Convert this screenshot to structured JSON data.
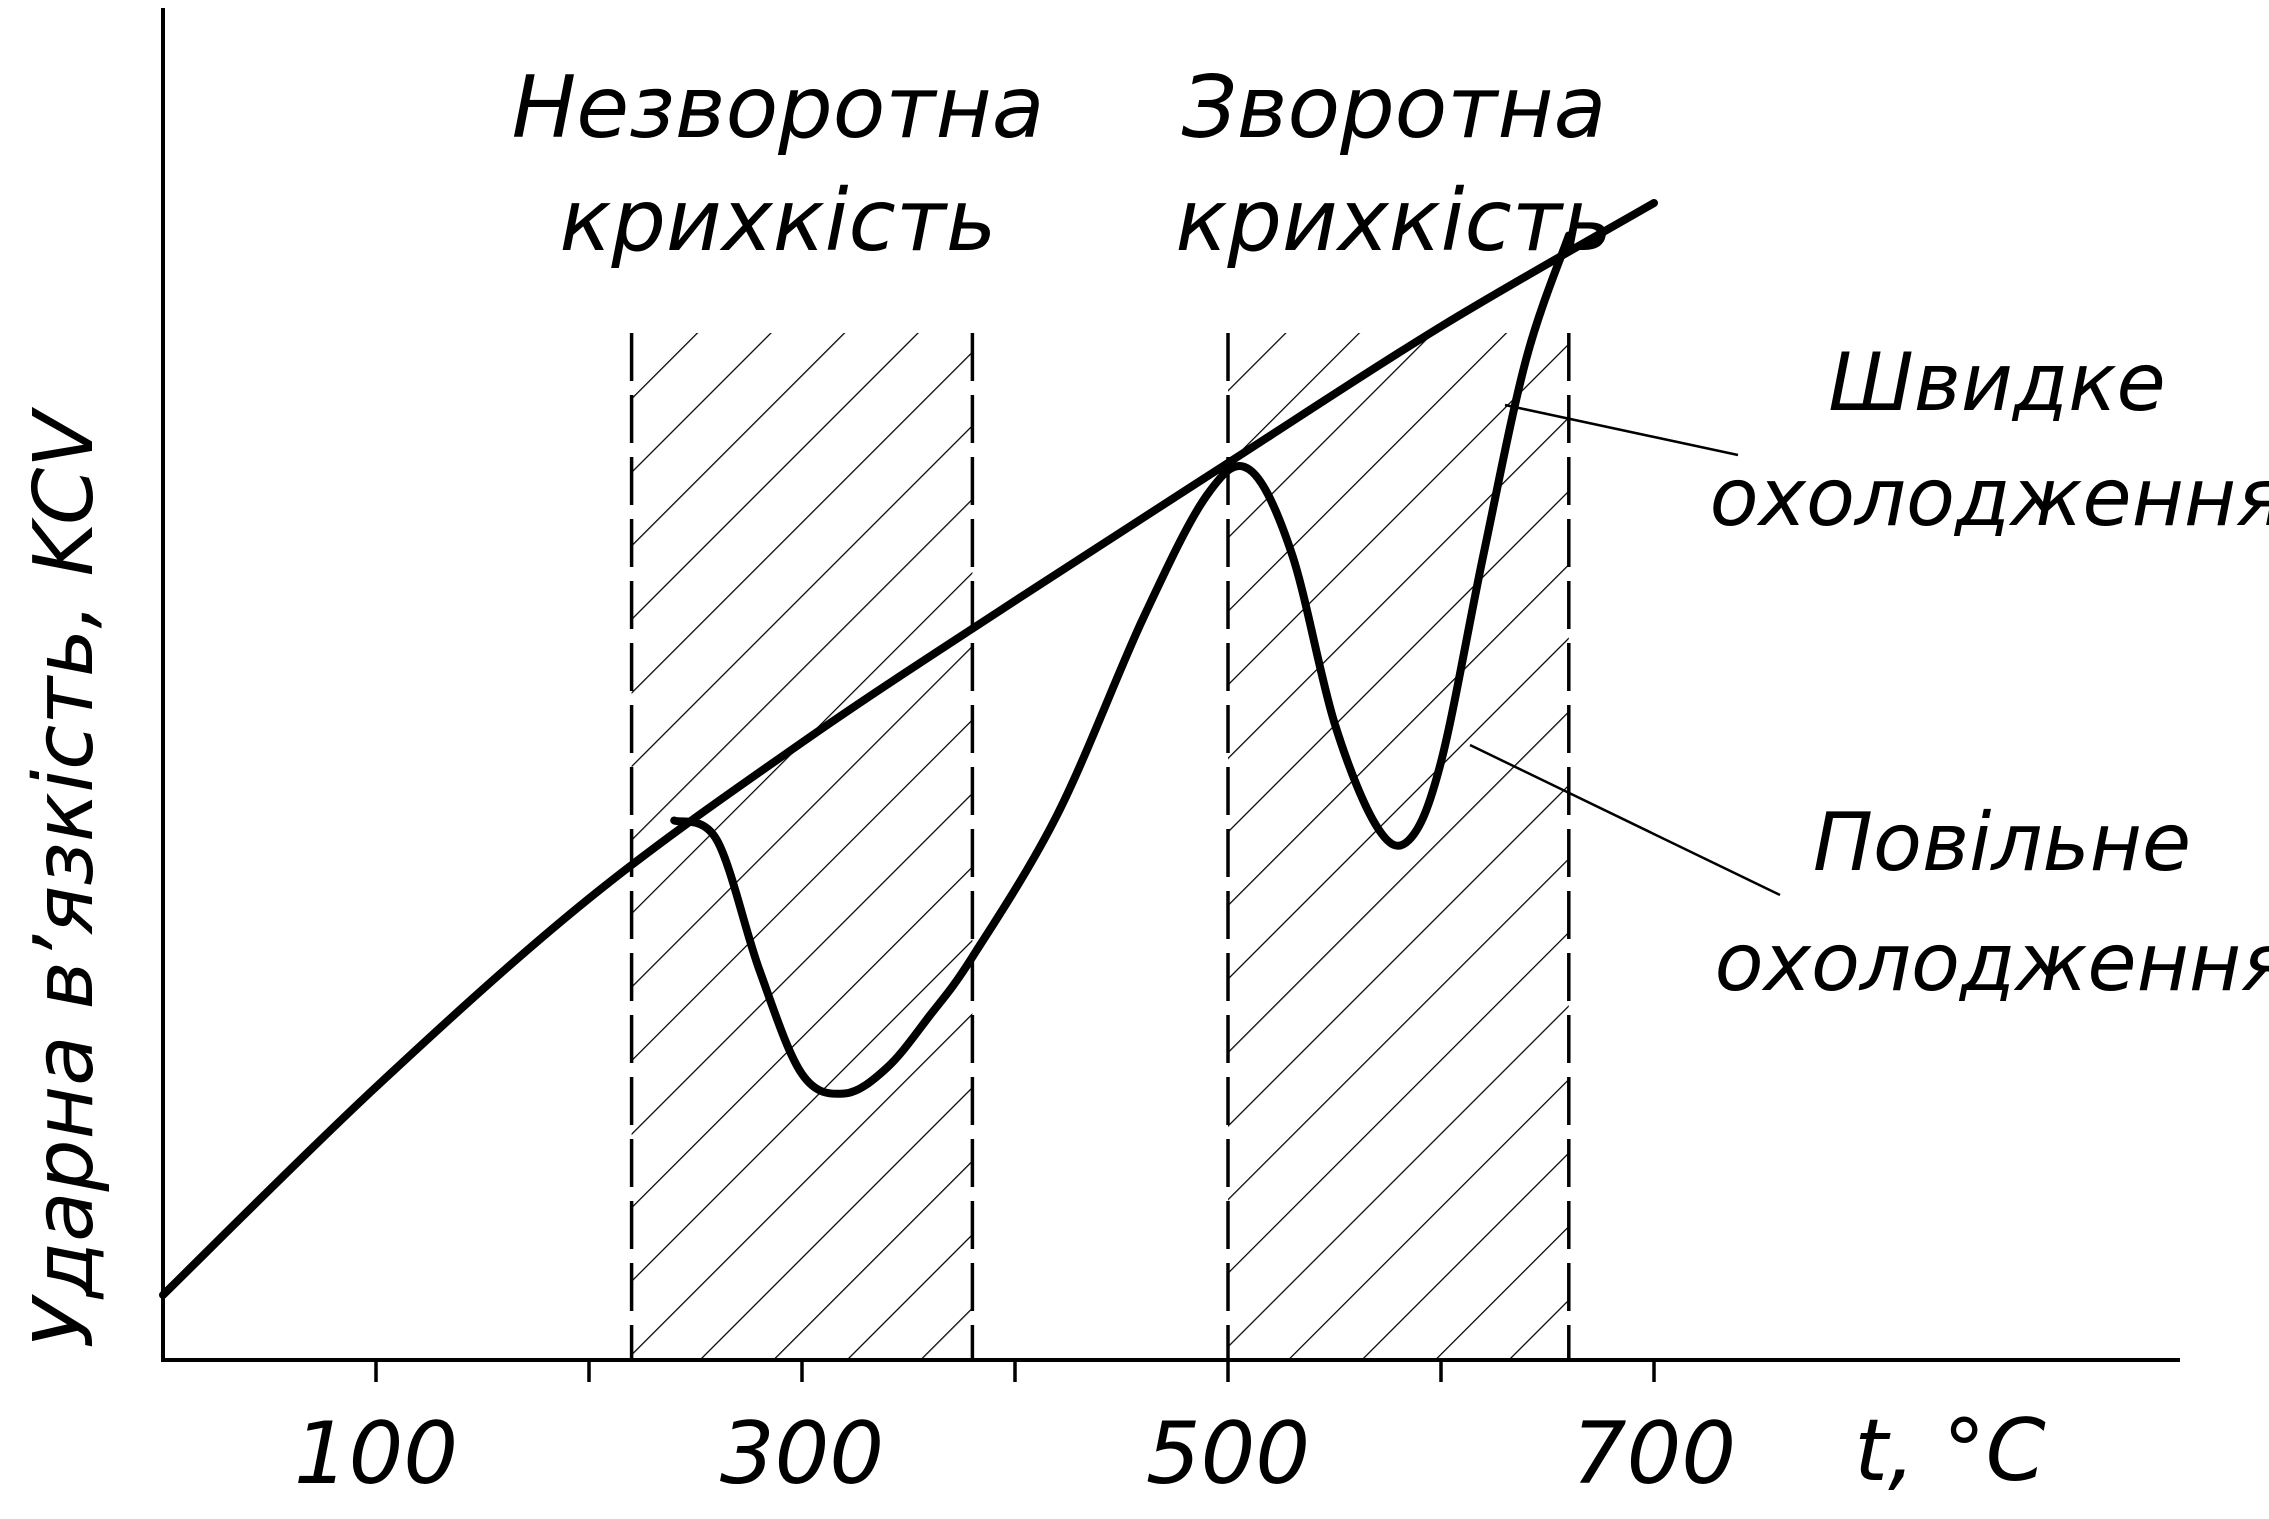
{
  "chart_data": {
    "type": "line",
    "title": "",
    "xlabel": "t, °C",
    "ylabel": "Ударна в’язкість, KCV",
    "xlim": [
      0,
      950
    ],
    "ylim": [
      0,
      1
    ],
    "x_tick_labels": [
      "100",
      "300",
      "500",
      "700"
    ],
    "x_ticks": [
      100,
      200,
      300,
      400,
      500,
      600,
      700
    ],
    "grid": false,
    "series": [
      {
        "name": "Швидке охолодження",
        "x": [
          0,
          100,
          200,
          300,
          400,
          500,
          600,
          700
        ],
        "y": [
          0.05,
          0.21,
          0.355,
          0.475,
          0.584,
          0.69,
          0.795,
          0.89
        ]
      },
      {
        "name": "Повільне охолодження",
        "x": [
          240,
          260,
          280,
          300,
          320,
          340,
          360,
          380,
          420,
          460,
          490,
          510,
          530,
          550,
          570,
          585,
          600,
          620,
          640,
          660
        ],
        "y": [
          0.415,
          0.4,
          0.3,
          0.22,
          0.205,
          0.225,
          0.265,
          0.31,
          0.42,
          0.57,
          0.665,
          0.685,
          0.62,
          0.49,
          0.41,
          0.4,
          0.46,
          0.62,
          0.77,
          0.865
        ]
      }
    ],
    "regions": [
      {
        "label_line1": "Незворотна",
        "label_line2": "крихкість",
        "x_from": 220,
        "x_to": 380
      },
      {
        "label_line1": "Зворотна",
        "label_line2": "крихкість",
        "x_from": 500,
        "x_to": 660
      }
    ]
  }
}
